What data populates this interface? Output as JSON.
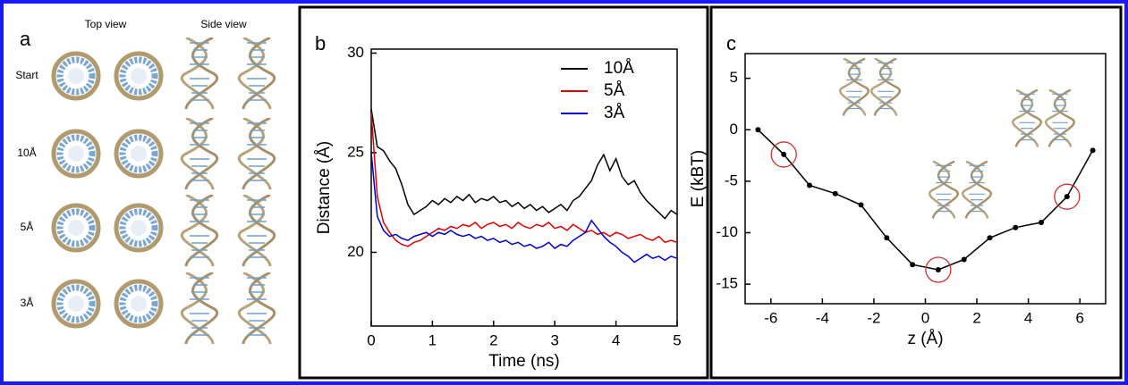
{
  "panel_a": {
    "label": "a",
    "headers": [
      "Top view",
      "Side view"
    ],
    "rows": [
      "Start",
      "10Å",
      "5Å",
      "3Å"
    ]
  },
  "chart_data": [
    {
      "type": "line",
      "panel_label": "b",
      "x_label": "Time (ns)",
      "y_label": "Distance (Å)",
      "x": [
        0,
        0.1,
        0.2,
        0.3,
        0.4,
        0.5,
        0.6,
        0.7,
        0.8,
        0.9,
        1.0,
        1.1,
        1.2,
        1.3,
        1.4,
        1.5,
        1.6,
        1.7,
        1.8,
        1.9,
        2.0,
        2.1,
        2.2,
        2.3,
        2.4,
        2.5,
        2.6,
        2.7,
        2.8,
        2.9,
        3.0,
        3.1,
        3.2,
        3.3,
        3.4,
        3.5,
        3.6,
        3.7,
        3.8,
        3.9,
        4.0,
        4.1,
        4.2,
        4.3,
        4.4,
        4.5,
        4.6,
        4.7,
        4.8,
        4.9,
        5.0
      ],
      "series": [
        {
          "name": "10Å",
          "color": "#000000",
          "values": [
            27.2,
            25.3,
            25.1,
            24.6,
            24.2,
            23.4,
            22.4,
            21.9,
            22.1,
            22.3,
            22.6,
            22.4,
            22.7,
            22.5,
            22.8,
            22.6,
            22.9,
            22.5,
            22.7,
            22.6,
            22.8,
            22.5,
            22.6,
            22.3,
            22.5,
            22.2,
            22.4,
            22.1,
            22.3,
            22.0,
            22.2,
            22.4,
            22.1,
            22.6,
            22.8,
            23.2,
            23.6,
            24.4,
            24.9,
            24.1,
            24.7,
            23.8,
            23.4,
            23.6,
            23.0,
            22.6,
            22.3,
            22.0,
            21.7,
            22.1,
            21.9
          ]
        },
        {
          "name": "5Å",
          "color": "#e00000",
          "values": [
            27.0,
            22.8,
            21.5,
            21.0,
            20.6,
            20.4,
            20.3,
            20.5,
            20.6,
            20.8,
            21.0,
            21.2,
            21.1,
            21.3,
            21.2,
            21.4,
            21.3,
            21.5,
            21.2,
            21.4,
            21.5,
            21.3,
            21.4,
            21.2,
            21.5,
            21.3,
            21.2,
            21.4,
            21.3,
            21.5,
            21.2,
            21.3,
            21.1,
            21.4,
            21.2,
            21.0,
            21.1,
            20.9,
            21.0,
            20.8,
            21.0,
            20.9,
            20.7,
            20.8,
            20.9,
            20.7,
            20.6,
            20.8,
            20.5,
            20.6,
            20.5
          ]
        },
        {
          "name": "3Å",
          "color": "#0000d0",
          "values": [
            25.0,
            21.8,
            21.1,
            20.8,
            20.9,
            20.7,
            20.6,
            20.8,
            20.9,
            21.0,
            20.8,
            21.0,
            20.9,
            21.1,
            20.9,
            20.8,
            20.9,
            20.7,
            20.8,
            20.6,
            20.7,
            20.5,
            20.6,
            20.4,
            20.5,
            20.3,
            20.4,
            20.2,
            20.3,
            20.5,
            20.2,
            20.4,
            20.3,
            20.6,
            20.8,
            21.0,
            21.6,
            21.2,
            20.8,
            20.5,
            20.3,
            20.0,
            19.8,
            19.5,
            19.7,
            19.9,
            19.7,
            19.8,
            19.6,
            19.8,
            19.7
          ]
        }
      ],
      "xlim": [
        0,
        5
      ],
      "xticks": [
        0,
        1,
        2,
        3,
        4,
        5
      ],
      "ylim": [
        16.3,
        30.2
      ],
      "yticks": [
        20,
        25,
        30
      ],
      "legend": "upper right"
    },
    {
      "type": "line",
      "panel_label": "c",
      "x_label": "z (Å)",
      "y_label": "E (kBT)",
      "x": [
        -6.5,
        -5.5,
        -4.5,
        -3.5,
        -2.5,
        -1.5,
        -0.5,
        0.5,
        1.5,
        2.5,
        3.5,
        4.5,
        5.5,
        6.5
      ],
      "values": [
        0,
        -2.4,
        -5.4,
        -6.2,
        -7.3,
        -10.5,
        -13.1,
        -13.6,
        -12.6,
        -10.5,
        -9.5,
        -9.0,
        -6.5,
        -2.0
      ],
      "color": "#000000",
      "markers": true,
      "xlim": [
        -7,
        7
      ],
      "xticks": [
        -6,
        -4,
        -2,
        0,
        2,
        4,
        6
      ],
      "ylim": [
        -16.9,
        7.4
      ],
      "yticks": [
        5,
        0,
        -5,
        -10,
        -15
      ]
    }
  ]
}
